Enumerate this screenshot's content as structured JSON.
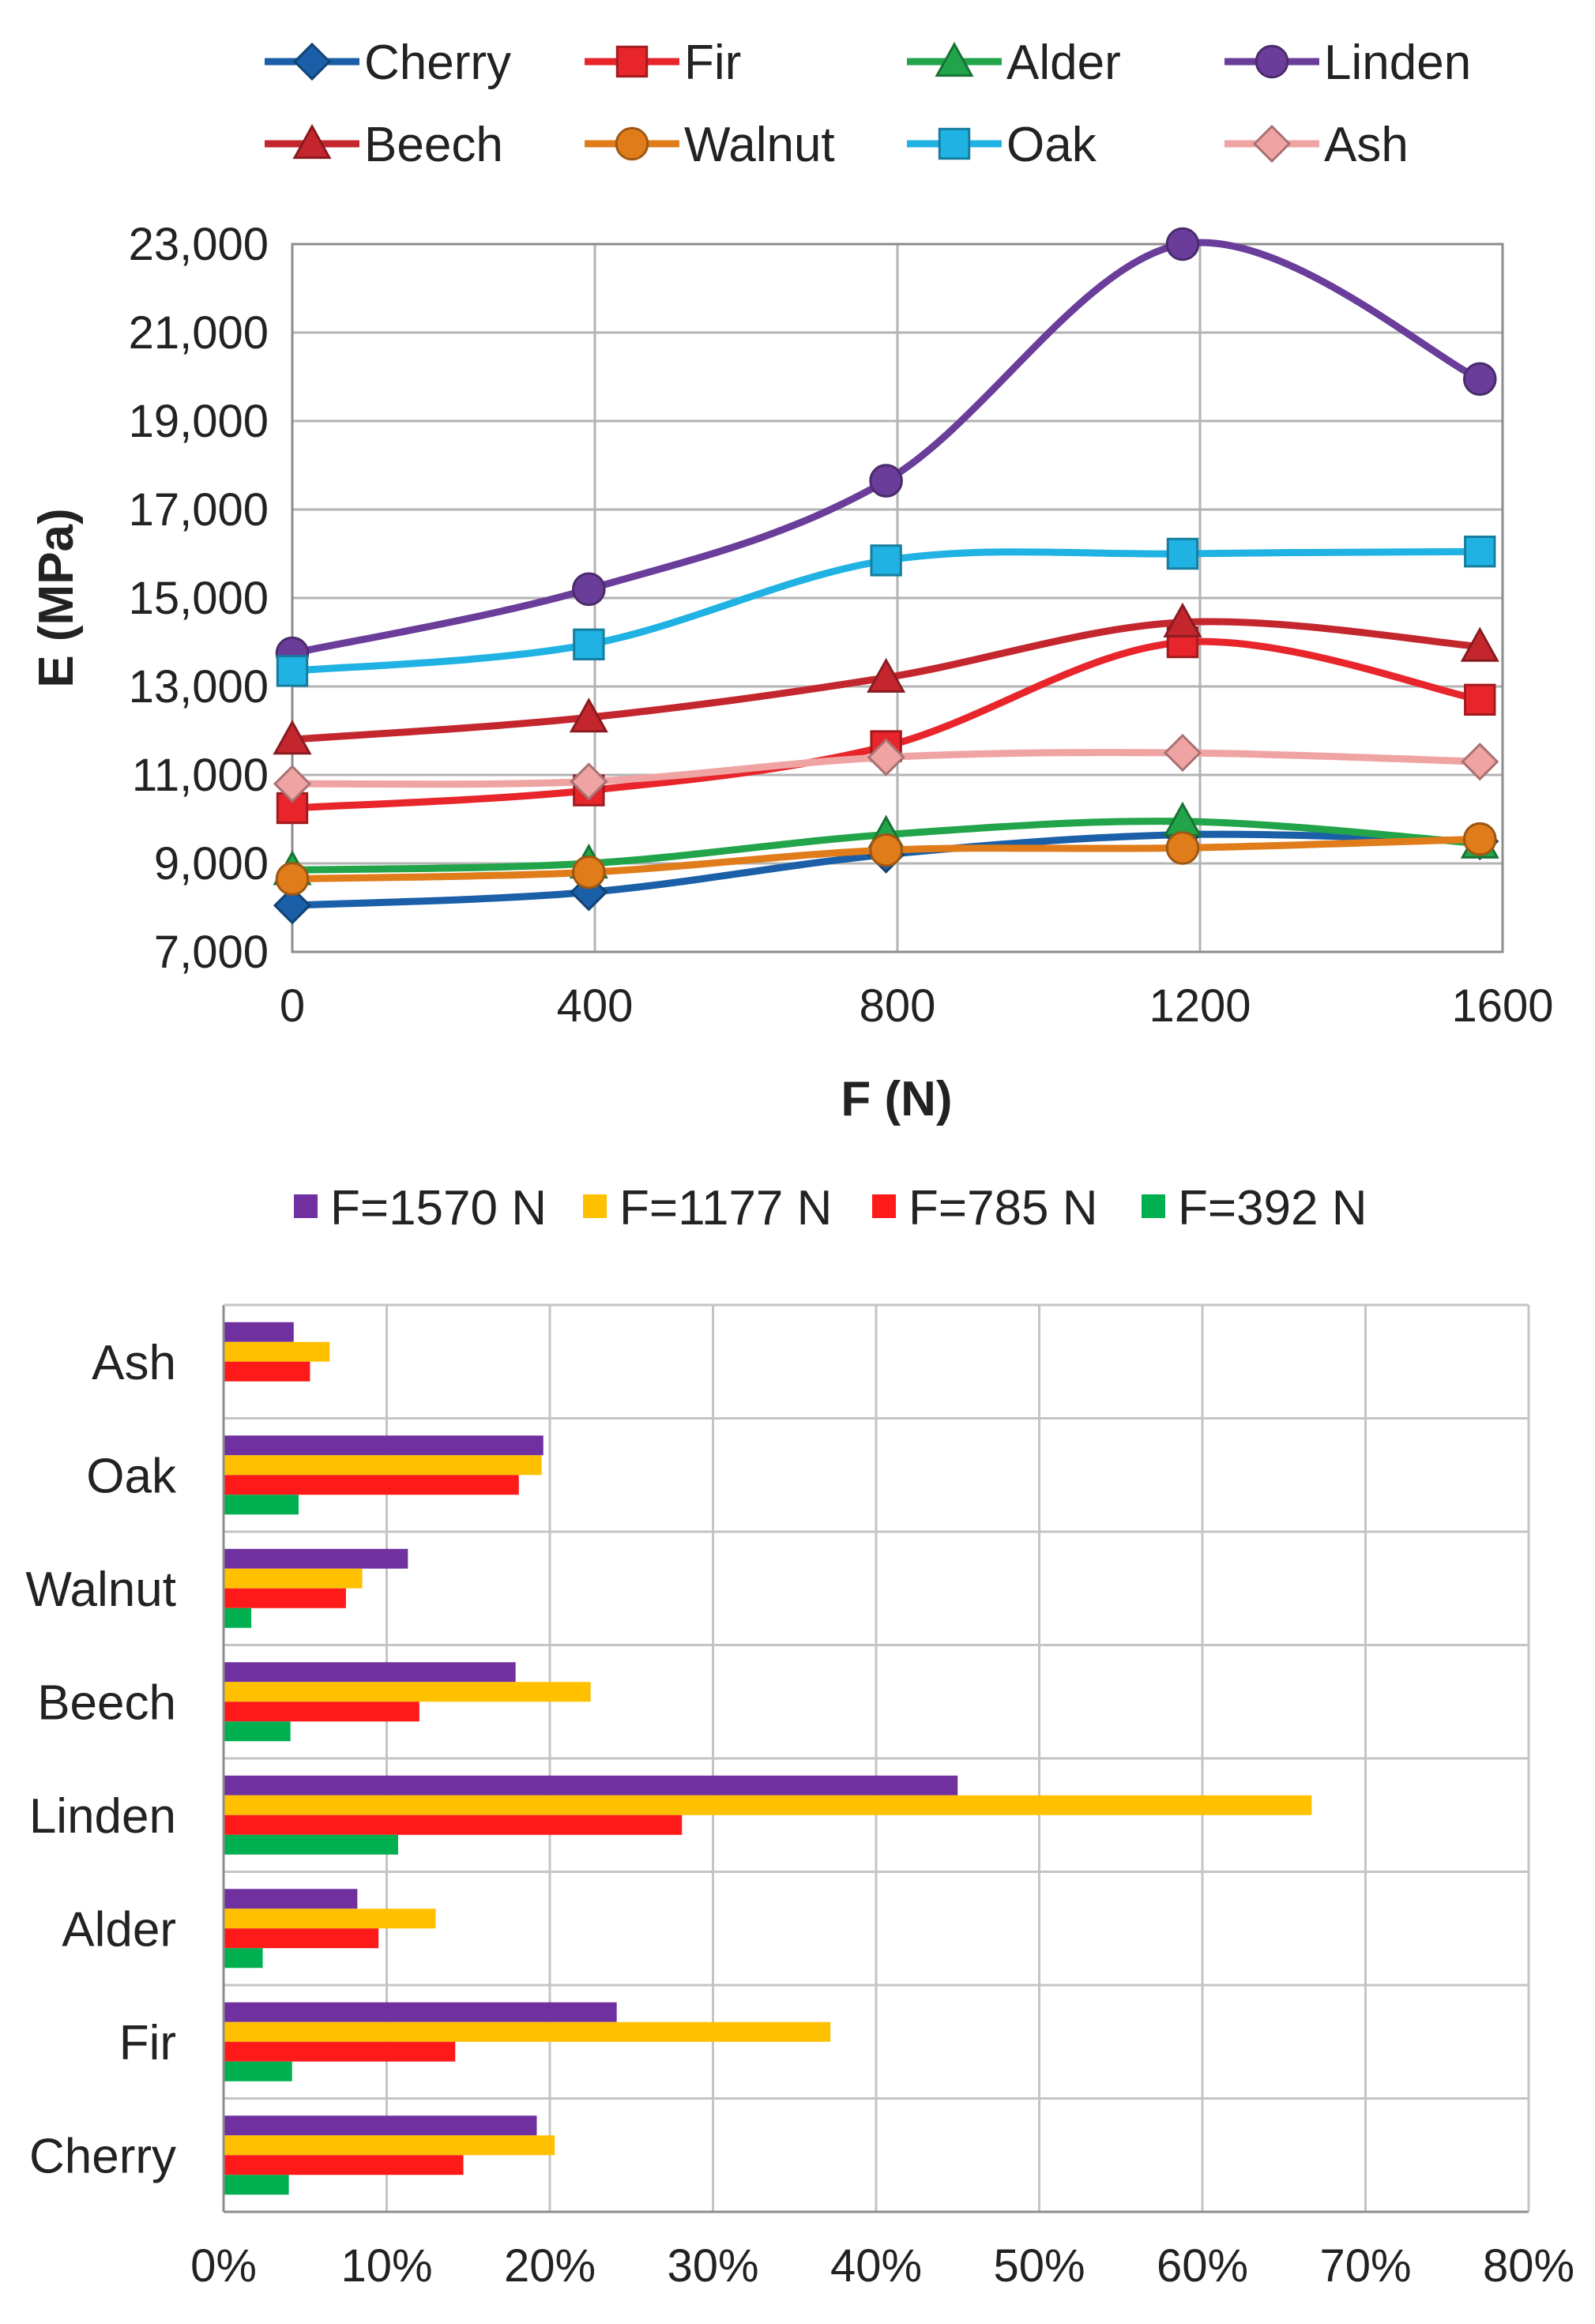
{
  "chart_data": [
    {
      "type": "line",
      "title": "",
      "xlabel": "F (N)",
      "ylabel": "E (MPa)",
      "xlim": [
        0,
        1600
      ],
      "ylim": [
        7000,
        23000
      ],
      "xticks": [
        "0",
        "400",
        "800",
        "1200",
        "1600"
      ],
      "yticks": [
        "7,000",
        "9,000",
        "11,000",
        "13,000",
        "15,000",
        "17,000",
        "19,000",
        "21,000",
        "23,000"
      ],
      "grid": true,
      "legend_position": "top",
      "x": [
        0,
        392,
        785,
        1177,
        1570
      ],
      "series": [
        {
          "name": "Cherry",
          "color": "#1a5fa8",
          "marker": "diamond",
          "values": [
            8050,
            8350,
            9200,
            9650,
            9500
          ]
        },
        {
          "name": "Fir",
          "color": "#e8252b",
          "marker": "square",
          "values": [
            10250,
            10650,
            11650,
            14000,
            12700
          ]
        },
        {
          "name": "Alder",
          "color": "#22a44a",
          "marker": "triangle",
          "values": [
            8850,
            9000,
            9650,
            9950,
            9450
          ]
        },
        {
          "name": "Linden",
          "color": "#6a3d9a",
          "marker": "circle",
          "values": [
            13750,
            15200,
            17650,
            23000,
            19950
          ]
        },
        {
          "name": "Beech",
          "color": "#c4262e",
          "marker": "triangle",
          "values": [
            11800,
            12300,
            13200,
            14450,
            13900
          ]
        },
        {
          "name": "Walnut",
          "color": "#e07c1a",
          "marker": "circle",
          "values": [
            8650,
            8800,
            9300,
            9350,
            9550
          ]
        },
        {
          "name": "Oak",
          "color": "#1fb2e3",
          "marker": "square",
          "values": [
            13350,
            13950,
            15850,
            16000,
            16050
          ]
        },
        {
          "name": "Ash",
          "color": "#f0a3a3",
          "marker": "diamond",
          "values": [
            10800,
            10850,
            11400,
            11500,
            11300
          ]
        }
      ]
    },
    {
      "type": "bar",
      "orientation": "horizontal",
      "title": "",
      "xlabel": "",
      "ylabel": "",
      "xlim": [
        0,
        80
      ],
      "xticks": [
        "0%",
        "10%",
        "20%",
        "30%",
        "40%",
        "50%",
        "60%",
        "70%",
        "80%"
      ],
      "grid": true,
      "legend_position": "top",
      "categories": [
        "Ash",
        "Oak",
        "Walnut",
        "Beech",
        "Linden",
        "Alder",
        "Fir",
        "Cherry"
      ],
      "series": [
        {
          "name": "F=1570 N",
          "color": "#7030a0",
          "values": [
            4.3,
            19.6,
            11.3,
            17.9,
            45.0,
            8.2,
            24.1,
            19.2
          ]
        },
        {
          "name": "F=1177 N",
          "color": "#ffc000",
          "values": [
            6.5,
            19.5,
            8.5,
            22.5,
            66.7,
            13.0,
            37.2,
            20.3
          ]
        },
        {
          "name": "F=785 N",
          "color": "#ff1a1a",
          "values": [
            5.3,
            18.1,
            7.5,
            12.0,
            28.1,
            9.5,
            14.2,
            14.7
          ]
        },
        {
          "name": "F=392 N",
          "color": "#00b050",
          "values": [
            0,
            4.6,
            1.7,
            4.1,
            10.7,
            2.4,
            4.2,
            4.0
          ]
        }
      ]
    }
  ]
}
